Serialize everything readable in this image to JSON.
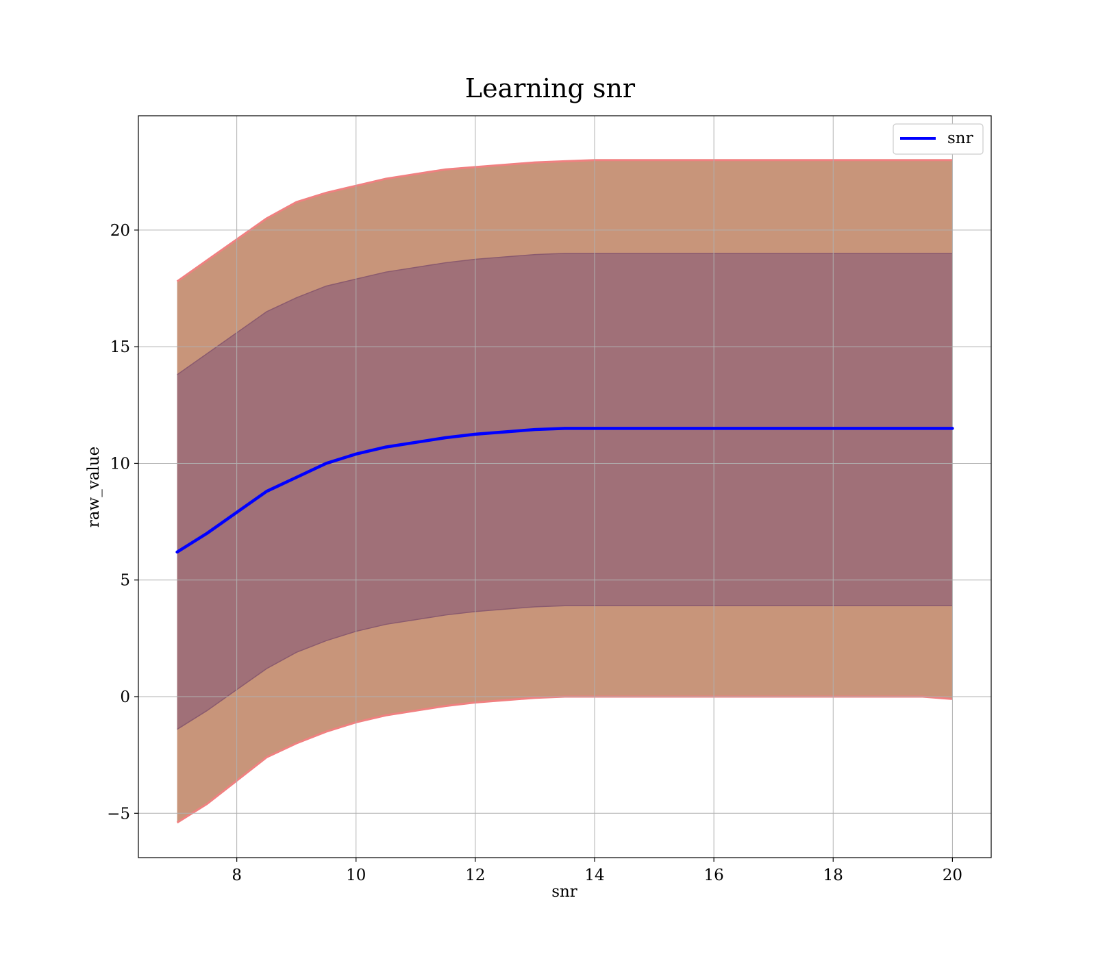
{
  "chart_data": {
    "type": "area",
    "title": "Learning snr",
    "xlabel": "snr",
    "ylabel": "raw_value",
    "xlim": [
      6.35,
      20.65
    ],
    "ylim": [
      -6.9,
      24.9
    ],
    "xticks": [
      8,
      10,
      12,
      14,
      16,
      18,
      20
    ],
    "xtick_labels": [
      "8",
      "10",
      "12",
      "14",
      "16",
      "18",
      "20"
    ],
    "yticks": [
      -5,
      0,
      5,
      10,
      15,
      20
    ],
    "ytick_labels": [
      "−5",
      "0",
      "5",
      "10",
      "15",
      "20"
    ],
    "grid": true,
    "legend": {
      "position": "top-right",
      "entries": [
        "snr"
      ]
    },
    "colors": {
      "line": "#0000ff",
      "outer_band": "#c8957a",
      "outer_band_edge": "#f08080",
      "inner_band": "#a07078",
      "grid": "#b0b0b0"
    },
    "x": [
      7,
      7.5,
      8,
      8.5,
      9,
      9.5,
      10,
      10.5,
      11,
      11.5,
      12,
      12.5,
      13,
      13.5,
      14,
      14.5,
      15,
      15.5,
      16,
      16.5,
      17,
      17.5,
      18,
      18.5,
      19,
      19.5,
      20
    ],
    "series": [
      {
        "name": "snr",
        "values": [
          6.2,
          7.0,
          7.9,
          8.8,
          9.4,
          10.0,
          10.4,
          10.7,
          10.9,
          11.1,
          11.25,
          11.35,
          11.45,
          11.5,
          11.5,
          11.5,
          11.5,
          11.5,
          11.5,
          11.5,
          11.5,
          11.5,
          11.5,
          11.5,
          11.5,
          11.5,
          11.5
        ]
      }
    ],
    "bands": [
      {
        "role": "outer",
        "upper": [
          17.8,
          18.7,
          19.6,
          20.5,
          21.2,
          21.6,
          21.9,
          22.2,
          22.4,
          22.6,
          22.7,
          22.8,
          22.9,
          22.95,
          23.0,
          23.0,
          23.0,
          23.0,
          23.0,
          23.0,
          23.0,
          23.0,
          23.0,
          23.0,
          23.0,
          23.0,
          23.0
        ],
        "lower": [
          -5.4,
          -4.6,
          -3.6,
          -2.6,
          -2.0,
          -1.5,
          -1.1,
          -0.8,
          -0.6,
          -0.4,
          -0.25,
          -0.15,
          -0.05,
          0.0,
          0.0,
          0.0,
          0.0,
          0.0,
          0.0,
          0.0,
          0.0,
          0.0,
          0.0,
          0.0,
          0.0,
          0.0,
          -0.1
        ]
      },
      {
        "role": "inner",
        "upper": [
          13.8,
          14.7,
          15.6,
          16.5,
          17.1,
          17.6,
          17.9,
          18.2,
          18.4,
          18.6,
          18.75,
          18.85,
          18.95,
          19.0,
          19.0,
          19.0,
          19.0,
          19.0,
          19.0,
          19.0,
          19.0,
          19.0,
          19.0,
          19.0,
          19.0,
          19.0,
          19.0
        ],
        "lower": [
          -1.4,
          -0.6,
          0.3,
          1.2,
          1.9,
          2.4,
          2.8,
          3.1,
          3.3,
          3.5,
          3.65,
          3.75,
          3.85,
          3.9,
          3.9,
          3.9,
          3.9,
          3.9,
          3.9,
          3.9,
          3.9,
          3.9,
          3.9,
          3.9,
          3.9,
          3.9,
          3.9
        ]
      }
    ]
  }
}
